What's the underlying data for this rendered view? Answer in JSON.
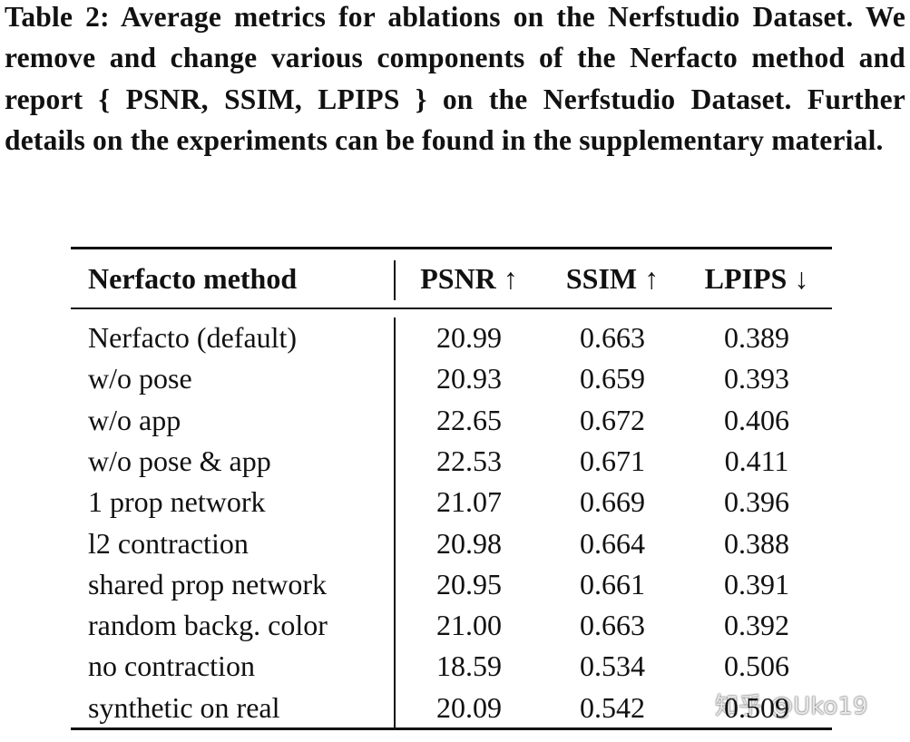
{
  "caption": "Table 2: Average metrics for ablations on the Nerfstudio Dataset. We remove and change various components of the Nerfacto method and report { PSNR, SSIM, LPIPS } on the Nerfstudio Dataset. Further details on the experiments can be found in the supplementary material.",
  "table": {
    "header": [
      "Nerfacto method",
      "PSNR ↑",
      "SSIM ↑",
      "LPIPS ↓"
    ],
    "rows": [
      [
        "Nerfacto (default)",
        "20.99",
        "0.663",
        "0.389"
      ],
      [
        "w/o pose",
        "20.93",
        "0.659",
        "0.393"
      ],
      [
        "w/o app",
        "22.65",
        "0.672",
        "0.406"
      ],
      [
        "w/o pose & app",
        "22.53",
        "0.671",
        "0.411"
      ],
      [
        "1 prop network",
        "21.07",
        "0.669",
        "0.396"
      ],
      [
        "l2 contraction",
        "20.98",
        "0.664",
        "0.388"
      ],
      [
        "shared prop network",
        "20.95",
        "0.661",
        "0.391"
      ],
      [
        "random backg. color",
        "21.00",
        "0.663",
        "0.392"
      ],
      [
        "no contraction",
        "18.59",
        "0.534",
        "0.506"
      ],
      [
        "synthetic on real",
        "20.09",
        "0.542",
        "0.509"
      ]
    ]
  },
  "watermark": "知乎 @Uko19"
}
